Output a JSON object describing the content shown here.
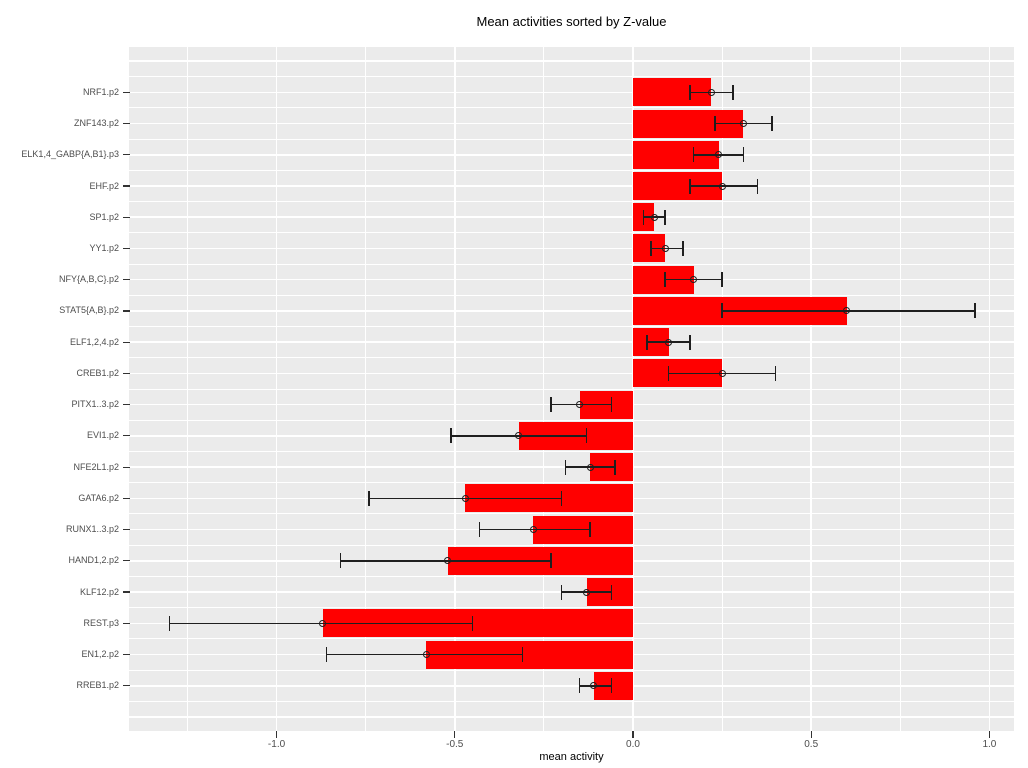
{
  "title": "Mean activities sorted by Z-value",
  "colors": {
    "bar": "#ff0000",
    "error_bar": "#1f1f1f",
    "panel_background": "#ebebeb",
    "gridline": "#ffffff",
    "axis_text": "#4d4d4d",
    "tick_mark": "#333333",
    "title_text": "#000000",
    "figure_background": "#ffffff"
  },
  "chart_data": {
    "type": "bar",
    "orientation": "horizontal",
    "title": "Mean activities sorted by Z-value",
    "xlabel": "mean activity",
    "ylabel": "",
    "xlim": [
      -1.414,
      1.069
    ],
    "x_major_ticks": [
      -1.0,
      -0.5,
      0.0,
      0.5,
      1.0
    ],
    "x_tick_labels": [
      "-1.0",
      "-0.5",
      "0.0",
      "0.5",
      "1.0"
    ],
    "x_minor_ticks": [
      -1.25,
      -0.75,
      -0.25,
      0.25,
      0.75
    ],
    "grid": true,
    "legend": "none",
    "bar_color": "#ff0000",
    "categories": [
      "NRF1.p2",
      "ZNF143.p2",
      "ELK1,4_GABP{A,B1}.p3",
      "EHF.p2",
      "SP1.p2",
      "YY1.p2",
      "NFY{A,B,C}.p2",
      "STAT5{A,B}.p2",
      "ELF1,2,4.p2",
      "CREB1.p2",
      "PITX1..3.p2",
      "EVI1.p2",
      "NFE2L1.p2",
      "GATA6.p2",
      "RUNX1..3.p2",
      "HAND1,2.p2",
      "KLF12.p2",
      "REST.p3",
      "EN1,2.p2",
      "RREB1.p2"
    ],
    "values": [
      0.22,
      0.31,
      0.24,
      0.25,
      0.06,
      0.09,
      0.17,
      0.6,
      0.1,
      0.25,
      -0.15,
      -0.32,
      -0.12,
      -0.47,
      -0.28,
      -0.52,
      -0.13,
      -0.87,
      -0.58,
      -0.11
    ],
    "error_low": [
      0.16,
      0.23,
      0.17,
      0.16,
      0.03,
      0.05,
      0.09,
      0.25,
      0.04,
      0.1,
      -0.23,
      -0.51,
      -0.19,
      -0.74,
      -0.43,
      -0.82,
      -0.2,
      -1.3,
      -0.86,
      -0.15
    ],
    "error_high": [
      0.28,
      0.39,
      0.31,
      0.35,
      0.09,
      0.14,
      0.25,
      0.96,
      0.16,
      0.4,
      -0.06,
      -0.13,
      -0.05,
      -0.2,
      -0.12,
      -0.23,
      -0.06,
      -0.45,
      -0.31,
      -0.06
    ]
  }
}
